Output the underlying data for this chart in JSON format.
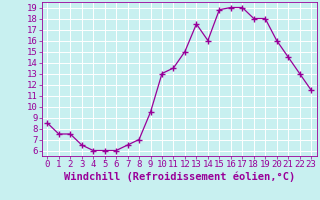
{
  "hours": [
    0,
    1,
    2,
    3,
    4,
    5,
    6,
    7,
    8,
    9,
    10,
    11,
    12,
    13,
    14,
    15,
    16,
    17,
    18,
    19,
    20,
    21,
    22,
    23
  ],
  "values": [
    8.5,
    7.5,
    7.5,
    6.5,
    6.0,
    6.0,
    6.0,
    6.5,
    7.0,
    9.5,
    13.0,
    13.5,
    15.0,
    17.5,
    16.0,
    18.8,
    19.0,
    19.0,
    18.0,
    18.0,
    16.0,
    14.5,
    13.0,
    11.5
  ],
  "line_color": "#990099",
  "marker": "+",
  "marker_size": 4,
  "bg_color": "#c8f0f0",
  "grid_color": "#ffffff",
  "xlabel": "Windchill (Refroidissement éolien,°C)",
  "xlim": [
    -0.5,
    23.5
  ],
  "ylim": [
    5.5,
    19.5
  ],
  "yticks": [
    6,
    7,
    8,
    9,
    10,
    11,
    12,
    13,
    14,
    15,
    16,
    17,
    18,
    19
  ],
  "xtick_labels": [
    "0",
    "1",
    "2",
    "3",
    "4",
    "5",
    "6",
    "7",
    "8",
    "9",
    "10",
    "11",
    "12",
    "13",
    "14",
    "15",
    "16",
    "17",
    "18",
    "19",
    "20",
    "21",
    "22",
    "23"
  ],
  "tick_color": "#990099",
  "label_color": "#990099",
  "axis_label_fontsize": 7.5,
  "tick_fontsize": 6.5
}
